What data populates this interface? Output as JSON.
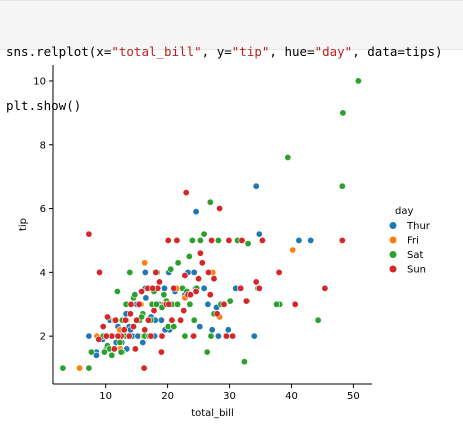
{
  "code_cell": {
    "lines": [
      [
        {
          "t": "sns.relplot(x=",
          "c": "plain"
        },
        {
          "t": "\"total_bill\"",
          "c": "str"
        },
        {
          "t": ", y=",
          "c": "plain"
        },
        {
          "t": "\"tip\"",
          "c": "str"
        },
        {
          "t": ", hue=",
          "c": "plain"
        },
        {
          "t": "\"day\"",
          "c": "str"
        },
        {
          "t": ", data=tips)",
          "c": "plain"
        }
      ],
      [
        {
          "t": "plt.show()",
          "c": "plain"
        }
      ]
    ]
  },
  "chart_data": {
    "type": "scatter",
    "title": "",
    "xlabel": "total_bill",
    "ylabel": "tip",
    "xlim": [
      1.5,
      53
    ],
    "ylim": [
      0.5,
      10.5
    ],
    "xticks": [
      10,
      20,
      30,
      40,
      50
    ],
    "yticks": [
      2,
      4,
      6,
      8,
      10
    ],
    "grid": false,
    "legend": {
      "title": "day",
      "placement": "right"
    },
    "series": [
      {
        "name": "Thur",
        "color": "#1f77b4",
        "points": [
          [
            7.3,
            2.0
          ],
          [
            8.5,
            1.5
          ],
          [
            10.1,
            1.6
          ],
          [
            11.2,
            2.0
          ],
          [
            12.6,
            1.8
          ],
          [
            13.0,
            2.0
          ],
          [
            13.4,
            1.6
          ],
          [
            14.5,
            2.0
          ],
          [
            15.9,
            2.0
          ],
          [
            16.5,
            3.2
          ],
          [
            16.0,
            1.8
          ],
          [
            17.9,
            2.0
          ],
          [
            19.0,
            2.5
          ],
          [
            20.3,
            2.2
          ],
          [
            24.1,
            2.0
          ],
          [
            25.2,
            2.3
          ],
          [
            27.2,
            2.2
          ],
          [
            28.2,
            2.0
          ],
          [
            29.8,
            2.2
          ],
          [
            34.0,
            2.0
          ],
          [
            15.0,
            3.0
          ],
          [
            16.4,
            4.0
          ],
          [
            18.3,
            4.0
          ],
          [
            20.9,
            3.5
          ],
          [
            22.8,
            3.3
          ],
          [
            24.5,
            3.5
          ],
          [
            25.9,
            3.5
          ],
          [
            29.0,
            3.0
          ],
          [
            31.0,
            3.5
          ],
          [
            34.3,
            6.7
          ],
          [
            34.8,
            5.2
          ],
          [
            41.2,
            5.0
          ],
          [
            43.1,
            5.0
          ],
          [
            10.7,
            2.5
          ],
          [
            11.7,
            1.8
          ],
          [
            12.2,
            2.2
          ],
          [
            13.8,
            2.3
          ],
          [
            14.3,
            2.0
          ],
          [
            15.5,
            2.0
          ],
          [
            16.8,
            2.0
          ],
          [
            18.7,
            3.0
          ],
          [
            19.5,
            3.5
          ],
          [
            21.2,
            3.4
          ],
          [
            23.3,
            4.0
          ],
          [
            24.6,
            5.9
          ],
          [
            16.4,
            3.5
          ],
          [
            12.0,
            2.3
          ],
          [
            9.5,
            1.9
          ],
          [
            8.5,
            1.4
          ],
          [
            10.3,
            1.7
          ],
          [
            14.0,
            2.2
          ],
          [
            17.3,
            2.6
          ],
          [
            20.2,
            4.0
          ],
          [
            27.9,
            2.9
          ],
          [
            19.6,
            2.2
          ],
          [
            18.0,
            2.5
          ],
          [
            15.2,
            2.0
          ],
          [
            13.3,
            2.7
          ],
          [
            24.3,
            4.0
          ],
          [
            26.5,
            3.0
          ],
          [
            18.2,
            4.0
          ]
        ]
      },
      {
        "name": "Fri",
        "color": "#ff7f0e",
        "points": [
          [
            5.8,
            1.0
          ],
          [
            8.6,
            2.0
          ],
          [
            10.3,
            2.0
          ],
          [
            12.3,
            2.2
          ],
          [
            13.4,
            2.5
          ],
          [
            15.4,
            3.0
          ],
          [
            16.3,
            4.3
          ],
          [
            19.4,
            3.0
          ],
          [
            21.0,
            3.0
          ],
          [
            22.8,
            3.2
          ],
          [
            27.3,
            4.0
          ],
          [
            28.4,
            2.6
          ],
          [
            40.2,
            4.7
          ],
          [
            15.7,
            3.0
          ],
          [
            12.4,
            1.6
          ],
          [
            11.4,
            2.5
          ],
          [
            16.1,
            2.0
          ],
          [
            13.1,
            2.0
          ],
          [
            21.5,
            3.5
          ]
        ]
      },
      {
        "name": "Sat",
        "color": "#2ca02c",
        "points": [
          [
            3.1,
            1.0
          ],
          [
            7.3,
            1.0
          ],
          [
            7.7,
            1.5
          ],
          [
            9.6,
            2.0
          ],
          [
            10.3,
            1.7
          ],
          [
            11.0,
            1.4
          ],
          [
            12.3,
            1.8
          ],
          [
            12.7,
            2.5
          ],
          [
            13.3,
            2.0
          ],
          [
            13.8,
            2.0
          ],
          [
            14.5,
            3.2
          ],
          [
            15.5,
            2.5
          ],
          [
            16.3,
            2.0
          ],
          [
            17.5,
            3.0
          ],
          [
            18.2,
            3.0
          ],
          [
            19.4,
            3.3
          ],
          [
            20.7,
            3.0
          ],
          [
            21.6,
            3.0
          ],
          [
            22.4,
            3.5
          ],
          [
            23.6,
            3.0
          ],
          [
            24.3,
            2.5
          ],
          [
            25.3,
            5.0
          ],
          [
            26.4,
            1.5
          ],
          [
            27.0,
            2.0
          ],
          [
            28.2,
            5.0
          ],
          [
            28.6,
            3.0
          ],
          [
            30.4,
            2.0
          ],
          [
            31.3,
            5.0
          ],
          [
            32.4,
            1.2
          ],
          [
            34.6,
            3.5
          ],
          [
            38.1,
            3.0
          ],
          [
            39.4,
            7.6
          ],
          [
            44.3,
            2.5
          ],
          [
            48.3,
            9.0
          ],
          [
            48.2,
            6.7
          ],
          [
            50.8,
            10.0
          ],
          [
            25.9,
            5.2
          ],
          [
            26.9,
            6.2
          ],
          [
            13.3,
            3.0
          ],
          [
            16.0,
            2.7
          ],
          [
            17.3,
            2.5
          ],
          [
            19.8,
            3.1
          ],
          [
            21.7,
            4.3
          ],
          [
            23.1,
            3.4
          ],
          [
            24.7,
            3.5
          ],
          [
            10.6,
            1.6
          ],
          [
            12.7,
            1.5
          ],
          [
            11.9,
            3.4
          ],
          [
            13.9,
            4.0
          ],
          [
            20.1,
            2.3
          ],
          [
            22.8,
            2.0
          ],
          [
            18.3,
            4.0
          ],
          [
            24.0,
            5.0
          ],
          [
            32.9,
            3.1
          ],
          [
            37.6,
            3.0
          ],
          [
            20.5,
            4.1
          ],
          [
            15.8,
            2.6
          ],
          [
            14.7,
            3.3
          ],
          [
            9.8,
            1.5
          ],
          [
            17.8,
            3.4
          ],
          [
            21.0,
            2.3
          ],
          [
            16.9,
            3.5
          ],
          [
            22.2,
            2.5
          ],
          [
            27.5,
            2.7
          ],
          [
            30.1,
            3.1
          ],
          [
            12.5,
            1.5
          ],
          [
            19.1,
            2.9
          ],
          [
            33.0,
            4.9
          ],
          [
            23.5,
            4.5
          ],
          [
            17.0,
            2.0
          ]
        ]
      },
      {
        "name": "Sun",
        "color": "#d62728",
        "points": [
          [
            7.3,
            5.2
          ],
          [
            9.0,
            4.0
          ],
          [
            10.3,
            2.6
          ],
          [
            11.0,
            2.0
          ],
          [
            11.6,
            2.5
          ],
          [
            12.5,
            2.0
          ],
          [
            13.2,
            2.5
          ],
          [
            14.0,
            2.7
          ],
          [
            14.8,
            1.6
          ],
          [
            15.4,
            3.0
          ],
          [
            16.2,
            1.0
          ],
          [
            16.8,
            3.5
          ],
          [
            17.3,
            2.0
          ],
          [
            18.4,
            3.5
          ],
          [
            19.0,
            1.5
          ],
          [
            19.8,
            3.0
          ],
          [
            20.1,
            5.0
          ],
          [
            20.7,
            2.5
          ],
          [
            21.5,
            5.0
          ],
          [
            22.1,
            2.5
          ],
          [
            23.0,
            6.5
          ],
          [
            23.3,
            3.3
          ],
          [
            24.2,
            2.0
          ],
          [
            25.0,
            3.8
          ],
          [
            25.6,
            4.3
          ],
          [
            26.6,
            4.0
          ],
          [
            27.1,
            5.0
          ],
          [
            28.4,
            6.0
          ],
          [
            29.1,
            3.0
          ],
          [
            29.9,
            5.0
          ],
          [
            30.5,
            2.0
          ],
          [
            32.0,
            5.0
          ],
          [
            32.7,
            3.1
          ],
          [
            34.8,
            3.5
          ],
          [
            35.3,
            5.0
          ],
          [
            38.0,
            4.0
          ],
          [
            40.6,
            3.0
          ],
          [
            45.4,
            3.5
          ],
          [
            48.2,
            5.0
          ],
          [
            25.3,
            4.6
          ],
          [
            23.7,
            3.3
          ],
          [
            22.8,
            3.9
          ],
          [
            21.0,
            3.5
          ],
          [
            18.7,
            3.7
          ],
          [
            17.6,
            3.5
          ],
          [
            16.9,
            2.5
          ],
          [
            15.0,
            2.5
          ],
          [
            14.1,
            3.0
          ],
          [
            13.0,
            2.2
          ],
          [
            12.0,
            2.0
          ],
          [
            10.1,
            2.0
          ],
          [
            8.9,
            1.9
          ],
          [
            9.6,
            2.3
          ],
          [
            11.4,
            1.6
          ],
          [
            26.9,
            3.3
          ],
          [
            31.8,
            3.5
          ],
          [
            34.3,
            3.7
          ],
          [
            20.2,
            3.0
          ],
          [
            19.1,
            2.0
          ],
          [
            17.8,
            2.8
          ],
          [
            24.6,
            3.4
          ],
          [
            28.0,
            2.7
          ],
          [
            22.6,
            2.8
          ],
          [
            16.3,
            2.2
          ],
          [
            18.1,
            4.0
          ],
          [
            29.5,
            2.0
          ],
          [
            27.5,
            3.8
          ],
          [
            14.5,
            2.3
          ],
          [
            15.8,
            3.4
          ],
          [
            13.8,
            2.0
          ]
        ]
      }
    ]
  }
}
